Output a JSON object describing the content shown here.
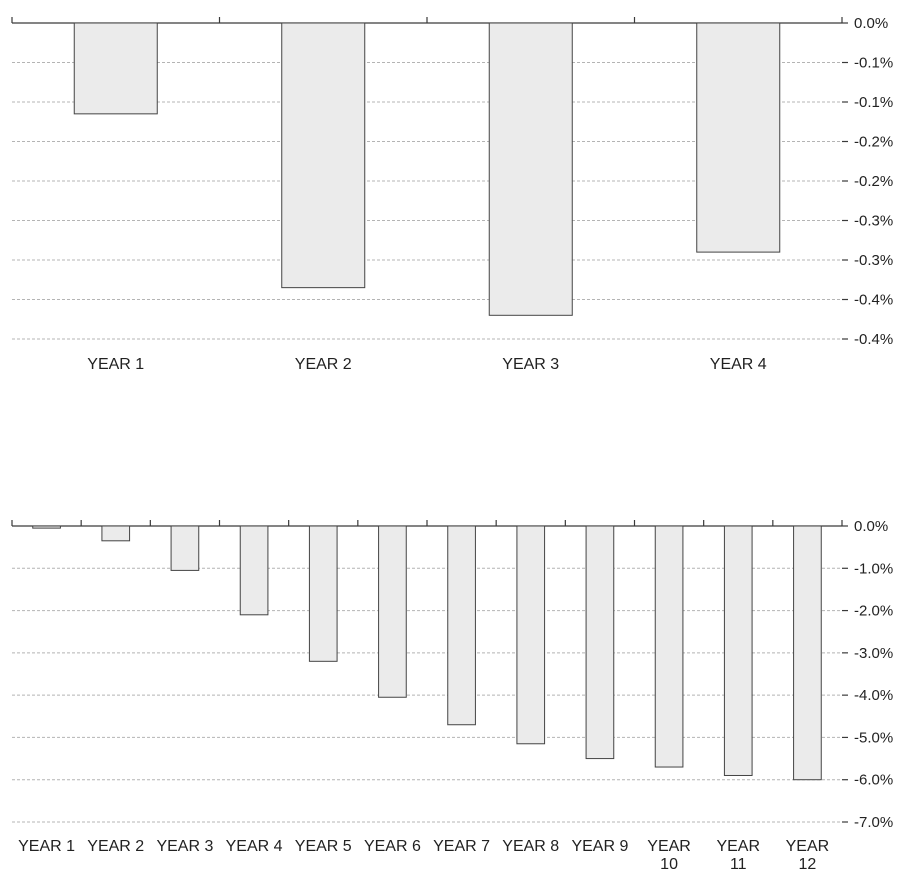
{
  "chart_data": [
    {
      "type": "bar",
      "categories": [
        "YEAR 1",
        "YEAR 2",
        "YEAR 3",
        "YEAR 4"
      ],
      "values": [
        -0.115,
        -0.335,
        -0.37,
        -0.29
      ],
      "title": "",
      "xlabel": "",
      "ylabel": "",
      "ylim": [
        -0.4,
        0.0
      ],
      "y_ticks": [
        0.0,
        -0.05,
        -0.1,
        -0.15,
        -0.2,
        -0.25,
        -0.3,
        -0.35,
        -0.4
      ],
      "y_tick_labels": [
        "0.0%",
        "-0.1%",
        "-0.1%",
        "-0.2%",
        "-0.2%",
        "-0.3%",
        "-0.3%",
        "-0.4%",
        "-0.4%"
      ],
      "y_axis_side": "right",
      "grid": true,
      "bar_color": "#ebebeb",
      "bar_edge_color": "#444444"
    },
    {
      "type": "bar",
      "categories": [
        "YEAR 1",
        "YEAR 2",
        "YEAR 3",
        "YEAR 4",
        "YEAR 5",
        "YEAR 6",
        "YEAR 7",
        "YEAR 8",
        "YEAR 9",
        "YEAR 10",
        "YEAR 11",
        "YEAR 12"
      ],
      "values": [
        -0.05,
        -0.35,
        -1.05,
        -2.1,
        -3.2,
        -4.05,
        -4.7,
        -5.15,
        -5.5,
        -5.7,
        -5.9,
        -6.0
      ],
      "title": "",
      "xlabel": "",
      "ylabel": "",
      "ylim": [
        -7.0,
        0.0
      ],
      "y_ticks": [
        0,
        -1,
        -2,
        -3,
        -4,
        -5,
        -6,
        -7
      ],
      "y_tick_labels": [
        "0.0%",
        "-1.0%",
        "-2.0%",
        "-3.0%",
        "-4.0%",
        "-5.0%",
        "-6.0%",
        "-7.0%"
      ],
      "y_axis_side": "right",
      "grid": true,
      "bar_color": "#ebebeb",
      "bar_edge_color": "#444444"
    }
  ]
}
